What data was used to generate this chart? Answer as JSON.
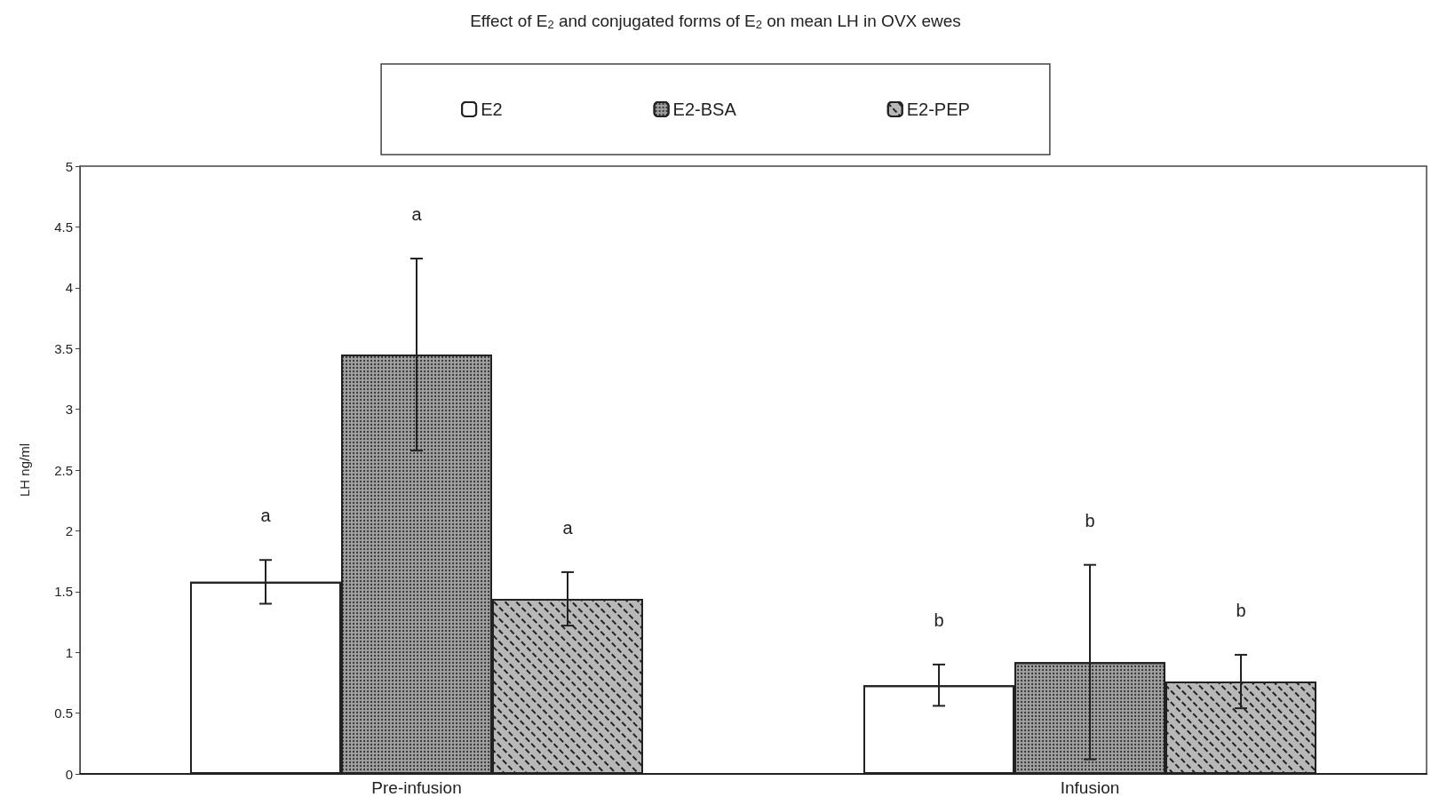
{
  "chart_data": {
    "type": "bar",
    "title": "Effect of E$_{2}$ and conjugated forms of E$_{2}$ on mean LH in OVX ewes",
    "ylabel": "LH ng/ml",
    "categories": [
      "Pre-infusion",
      "Infusion"
    ],
    "series": [
      {
        "name": "E2",
        "color": "#ffffff",
        "values": [
          1.58,
          0.73
        ],
        "errors": [
          0.18,
          0.17
        ]
      },
      {
        "name": "E2-BSA",
        "color": "#a0a0a0",
        "values": [
          3.45,
          0.92
        ],
        "errors": [
          0.79,
          0.8
        ]
      },
      {
        "name": "E2-PEP",
        "color": "#b8b8b8",
        "values": [
          1.44,
          0.76
        ],
        "errors": [
          0.22,
          0.22
        ]
      }
    ],
    "annotations": [
      "a",
      "a",
      "a",
      "b",
      "b",
      "b"
    ],
    "ylim": [
      0,
      5
    ],
    "yticks": [
      0,
      0.5,
      1,
      1.5,
      2,
      2.5,
      3,
      3.5,
      4,
      4.5,
      5
    ],
    "grid": false,
    "legend": "top"
  }
}
